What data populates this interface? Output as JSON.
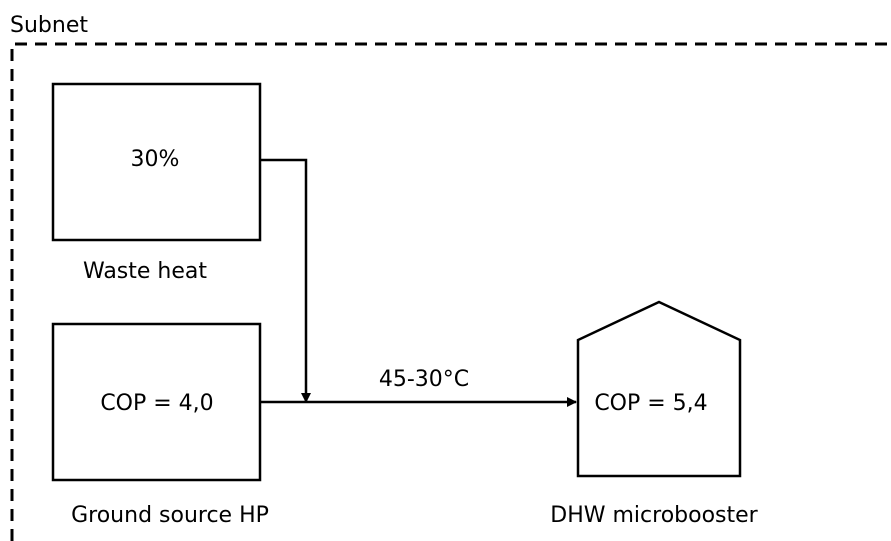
{
  "subnet": {
    "label": "Subnet"
  },
  "nodes": [
    {
      "label": "Waste heat",
      "value": "30%"
    },
    {
      "label": "Ground source HP",
      "value": "COP = 4,0"
    },
    {
      "label": "DHW microbooster",
      "value": "COP = 5,4"
    }
  ],
  "edges": [
    {
      "label": "45-30°C"
    }
  ]
}
